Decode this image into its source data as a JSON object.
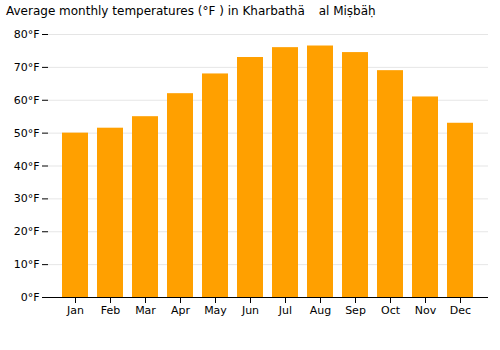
{
  "chart_data": {
    "type": "bar",
    "title": "Average monthly temperatures (°F ) in Kharbathä al Miṣbäḥ",
    "categories": [
      "Jan",
      "Feb",
      "Mar",
      "Apr",
      "May",
      "Jun",
      "Jul",
      "Aug",
      "Sep",
      "Oct",
      "Nov",
      "Dec"
    ],
    "values": [
      50,
      51.5,
      55,
      62,
      68,
      73,
      76,
      76.5,
      74.5,
      69,
      61,
      53
    ],
    "color": "#FFA000",
    "ylim": [
      0,
      80
    ],
    "yticks": [
      {
        "value": 0,
        "label": "0°F"
      },
      {
        "value": 10,
        "label": "10°F"
      },
      {
        "value": 20,
        "label": "20°F"
      },
      {
        "value": 30,
        "label": "30°F"
      },
      {
        "value": 40,
        "label": "40°F"
      },
      {
        "value": 50,
        "label": "50°F"
      },
      {
        "value": 60,
        "label": "60°F"
      },
      {
        "value": 70,
        "label": "70°F"
      },
      {
        "value": 80,
        "label": "80°F"
      }
    ],
    "grid": true
  }
}
